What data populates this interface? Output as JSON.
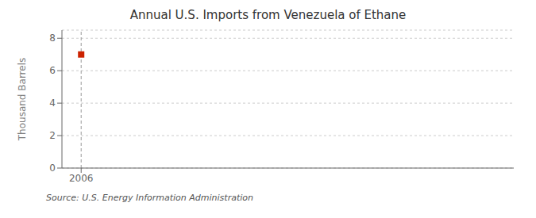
{
  "chart_data": {
    "type": "scatter",
    "title": "Annual U.S. Imports from Venezuela of Ethane",
    "y_label": "Thousand Barrels",
    "annotations": [
      "Source: U.S. Energy Information Administration"
    ],
    "x": [
      2006
    ],
    "values": [
      7
    ],
    "color": "#cc2200",
    "marker": "square",
    "xlim": [
      2005.6,
      2015
    ],
    "xticks": [
      2006
    ],
    "ylim": [
      0,
      8.5
    ],
    "yticks": [
      0,
      2,
      4,
      6,
      8
    ],
    "grid": true,
    "vlines": [
      2006
    ]
  }
}
